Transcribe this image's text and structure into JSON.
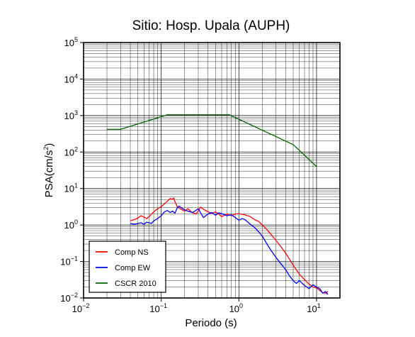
{
  "chart_data": {
    "type": "line",
    "title": "Sitio: Hosp. Upala (AUPH)",
    "xlabel": "Periodo (s)",
    "ylabel": {
      "base": "PSA(cm/s",
      "exp": "2",
      "close": ")"
    },
    "x_scale": "log",
    "y_scale": "log",
    "xlim": [
      0.01,
      20
    ],
    "ylim": [
      0.01,
      100000
    ],
    "grid": true,
    "legend_position": "bottom-left",
    "x_ticks": [
      {
        "base": "10",
        "exp": "−2",
        "value": 0.01
      },
      {
        "base": "10",
        "exp": "−1",
        "value": 0.1
      },
      {
        "base": "10",
        "exp": "0",
        "value": 1
      },
      {
        "base": "10",
        "exp": "1",
        "value": 10
      }
    ],
    "y_ticks": [
      {
        "base": "10",
        "exp": "−2",
        "value": 0.01
      },
      {
        "base": "10",
        "exp": "−1",
        "value": 0.1
      },
      {
        "base": "10",
        "exp": "0",
        "value": 1
      },
      {
        "base": "10",
        "exp": "1",
        "value": 10
      },
      {
        "base": "10",
        "exp": "2",
        "value": 100
      },
      {
        "base": "10",
        "exp": "3",
        "value": 1000
      },
      {
        "base": "10",
        "exp": "4",
        "value": 10000
      },
      {
        "base": "10",
        "exp": "5",
        "value": 100000
      }
    ],
    "series": [
      {
        "name": "Comp NS",
        "color": "#ff0000",
        "points": [
          [
            0.04,
            1.3
          ],
          [
            0.045,
            1.4
          ],
          [
            0.05,
            1.55
          ],
          [
            0.055,
            1.8
          ],
          [
            0.06,
            1.65
          ],
          [
            0.065,
            1.5
          ],
          [
            0.07,
            1.7
          ],
          [
            0.075,
            2.0
          ],
          [
            0.08,
            2.3
          ],
          [
            0.09,
            2.8
          ],
          [
            0.1,
            3.2
          ],
          [
            0.11,
            3.8
          ],
          [
            0.12,
            4.5
          ],
          [
            0.13,
            5.3
          ],
          [
            0.14,
            5.1
          ],
          [
            0.145,
            5.5
          ],
          [
            0.15,
            4.4
          ],
          [
            0.16,
            3.2
          ],
          [
            0.18,
            2.7
          ],
          [
            0.2,
            2.4
          ],
          [
            0.22,
            2.8
          ],
          [
            0.25,
            2.2
          ],
          [
            0.28,
            2.0
          ],
          [
            0.3,
            2.4
          ],
          [
            0.32,
            3.1
          ],
          [
            0.35,
            2.7
          ],
          [
            0.4,
            2.3
          ],
          [
            0.45,
            2.1
          ],
          [
            0.5,
            2.3
          ],
          [
            0.55,
            2.0
          ],
          [
            0.6,
            1.7
          ],
          [
            0.65,
            1.85
          ],
          [
            0.7,
            2.0
          ],
          [
            0.8,
            1.8
          ],
          [
            0.9,
            2.0
          ],
          [
            1.0,
            2.05
          ],
          [
            1.2,
            1.9
          ],
          [
            1.4,
            1.7
          ],
          [
            1.6,
            1.4
          ],
          [
            1.8,
            1.25
          ],
          [
            2.0,
            1.0
          ],
          [
            2.3,
            0.75
          ],
          [
            2.6,
            0.55
          ],
          [
            3.0,
            0.38
          ],
          [
            3.5,
            0.25
          ],
          [
            4.0,
            0.17
          ],
          [
            5.0,
            0.08
          ],
          [
            6.0,
            0.045
          ],
          [
            7.0,
            0.032
          ],
          [
            8.0,
            0.024
          ],
          [
            9.0,
            0.02
          ],
          [
            10.0,
            0.019
          ],
          [
            11.0,
            0.016
          ],
          [
            12.0,
            0.014
          ],
          [
            13.0,
            0.0135
          ],
          [
            14.0,
            0.015
          ]
        ]
      },
      {
        "name": "Comp EW",
        "color": "#0000ff",
        "points": [
          [
            0.04,
            1.1
          ],
          [
            0.045,
            1.05
          ],
          [
            0.05,
            1.1
          ],
          [
            0.055,
            1.15
          ],
          [
            0.06,
            1.05
          ],
          [
            0.065,
            1.2
          ],
          [
            0.07,
            1.15
          ],
          [
            0.075,
            1.1
          ],
          [
            0.08,
            1.3
          ],
          [
            0.09,
            1.5
          ],
          [
            0.1,
            1.8
          ],
          [
            0.11,
            2.3
          ],
          [
            0.12,
            2.5
          ],
          [
            0.13,
            2.2
          ],
          [
            0.14,
            2.4
          ],
          [
            0.15,
            2.1
          ],
          [
            0.16,
            2.9
          ],
          [
            0.17,
            3.3
          ],
          [
            0.18,
            3.0
          ],
          [
            0.2,
            2.6
          ],
          [
            0.22,
            2.4
          ],
          [
            0.25,
            2.2
          ],
          [
            0.28,
            2.5
          ],
          [
            0.3,
            2.8
          ],
          [
            0.32,
            2.2
          ],
          [
            0.35,
            1.6
          ],
          [
            0.4,
            2.0
          ],
          [
            0.45,
            2.2
          ],
          [
            0.5,
            1.85
          ],
          [
            0.55,
            2.15
          ],
          [
            0.6,
            2.05
          ],
          [
            0.7,
            1.8
          ],
          [
            0.8,
            1.9
          ],
          [
            0.9,
            1.6
          ],
          [
            1.0,
            1.35
          ],
          [
            1.1,
            1.5
          ],
          [
            1.2,
            1.4
          ],
          [
            1.4,
            1.05
          ],
          [
            1.6,
            0.85
          ],
          [
            1.8,
            0.65
          ],
          [
            2.0,
            0.5
          ],
          [
            2.3,
            0.3
          ],
          [
            2.6,
            0.2
          ],
          [
            3.0,
            0.13
          ],
          [
            3.5,
            0.085
          ],
          [
            4.0,
            0.06
          ],
          [
            4.5,
            0.04
          ],
          [
            5.0,
            0.03
          ],
          [
            5.5,
            0.025
          ],
          [
            6.0,
            0.03
          ],
          [
            7.0,
            0.022
          ],
          [
            8.0,
            0.018
          ],
          [
            9.0,
            0.023
          ],
          [
            10.0,
            0.02
          ],
          [
            11.0,
            0.018
          ],
          [
            12.0,
            0.0135
          ],
          [
            13.0,
            0.015
          ],
          [
            14.0,
            0.0125
          ]
        ]
      },
      {
        "name": "CSCR 2010",
        "color": "#006400",
        "points": [
          [
            0.02,
            420
          ],
          [
            0.03,
            420
          ],
          [
            0.12,
            1050
          ],
          [
            0.75,
            1050
          ],
          [
            5.0,
            160
          ],
          [
            10.0,
            40
          ]
        ]
      }
    ]
  }
}
